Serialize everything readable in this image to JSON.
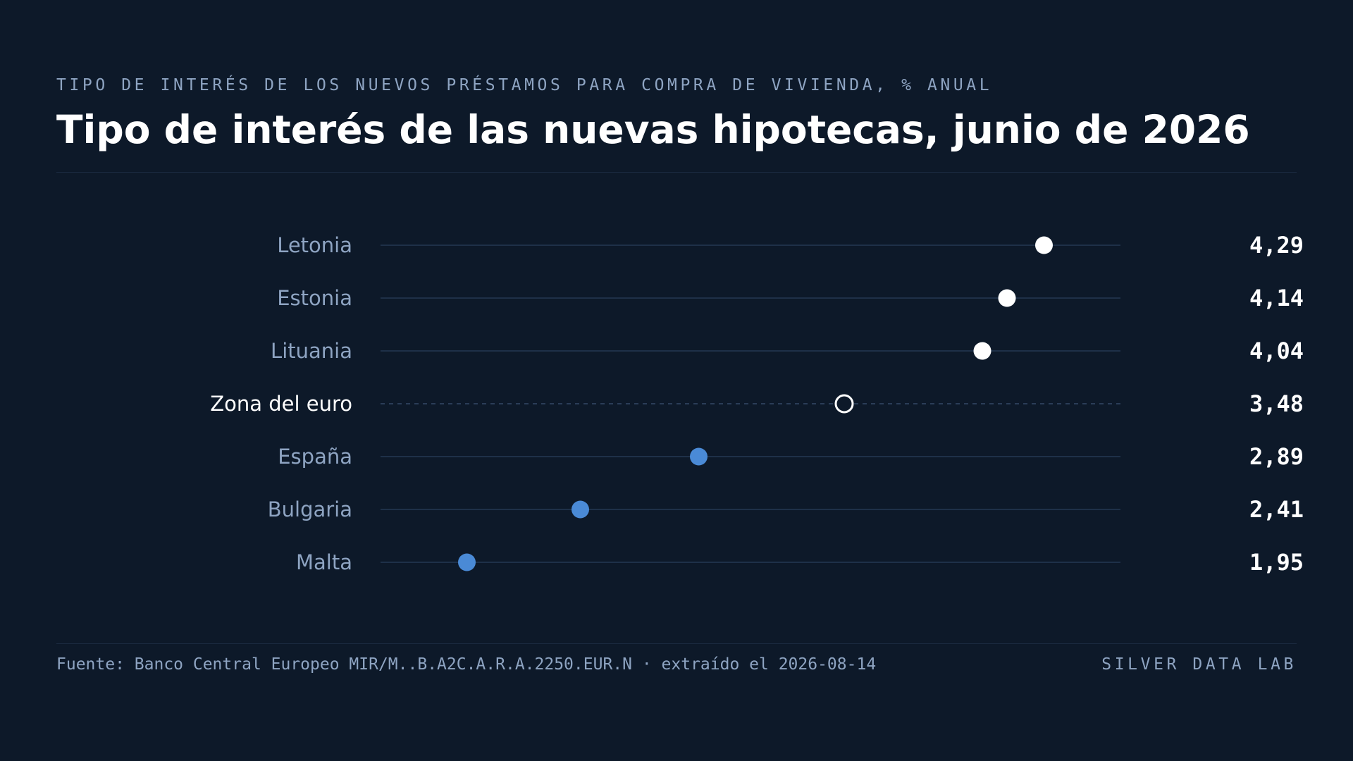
{
  "header": {
    "eyebrow": "TIPO DE INTERÉS DE LOS NUEVOS PRÉSTAMOS PARA COMPRA DE VIVIENDA, % ANUAL",
    "title": "Tipo de interés de las nuevas hipotecas, junio de 2026"
  },
  "chart_data": {
    "type": "dot",
    "title": "Tipo de interés de las nuevas hipotecas, junio de 2026",
    "subtitle": "TIPO DE INTERÉS DE LOS NUEVOS PRÉSTAMOS PARA COMPRA DE VIVIENDA, % ANUAL",
    "xlabel": "",
    "ylabel": "",
    "xlim": [
      1.6,
      4.6
    ],
    "grid": false,
    "legend": "none",
    "categories": [
      "Letonia",
      "Estonia",
      "Lituania",
      "Zona del euro",
      "España",
      "Bulgaria",
      "Malta"
    ],
    "values": [
      4.29,
      4.14,
      4.04,
      3.48,
      2.89,
      2.41,
      1.95
    ],
    "value_labels": [
      "4,29",
      "4,14",
      "4,04",
      "3,48",
      "2,89",
      "2,41",
      "1,95"
    ],
    "highlight": [
      "high",
      "high",
      "high",
      "reference",
      "low",
      "low",
      "low"
    ],
    "colors": {
      "high": "#ffffff",
      "low": "#4a8ad6",
      "reference": "#ffffff",
      "track": "#1e3048",
      "label": "#8ea4c2",
      "reference_label": "#ffffff",
      "value": "#ffffff"
    }
  },
  "footer": {
    "source": "Fuente: Banco Central Europeo MIR/M..B.A2C.A.R.A.2250.EUR.N · extraído el 2026-08-14",
    "brand": "SILVER DATA LAB"
  }
}
